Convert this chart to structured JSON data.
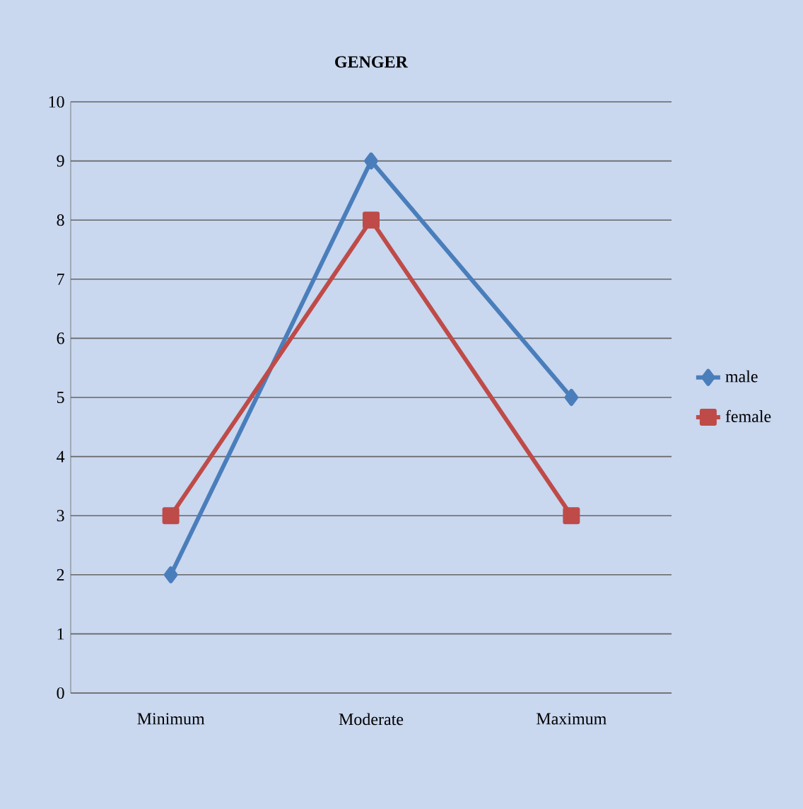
{
  "chart_data": {
    "type": "line",
    "title": "**GENGER**",
    "categories": [
      "Minimum",
      "Moderate",
      "Maximum"
    ],
    "series": [
      {
        "name": "male",
        "color": "#4a7ebb",
        "values": [
          2,
          9,
          5
        ],
        "marker": "diamond"
      },
      {
        "name": "female",
        "color": "#be4b48",
        "values": [
          3,
          8,
          3
        ],
        "marker": "square"
      }
    ],
    "ylim": [
      0,
      10
    ],
    "yticks": [
      0,
      1,
      2,
      3,
      4,
      5,
      6,
      7,
      8,
      9,
      10
    ],
    "grid": "y",
    "legend": "right"
  }
}
